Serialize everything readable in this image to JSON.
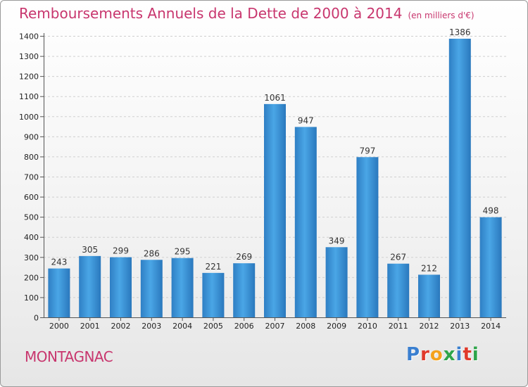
{
  "header": {
    "title": "Remboursements Annuels de la Dette de 2000 à 2014",
    "subtitle": "(en milliers d'€)"
  },
  "footer": {
    "town": "MONTAGNAC",
    "logo": [
      "P",
      "r",
      "o",
      "x",
      "i",
      "t",
      "i"
    ],
    "logo_colors": [
      "#3a7fd0",
      "#e0392b",
      "#f4a21c",
      "#2ea54a",
      "#3a7fd0",
      "#e0392b",
      "#2ea54a"
    ]
  },
  "chart_data": {
    "type": "bar",
    "categories": [
      "2000",
      "2001",
      "2002",
      "2003",
      "2004",
      "2005",
      "2006",
      "2007",
      "2008",
      "2009",
      "2010",
      "2011",
      "2012",
      "2013",
      "2014"
    ],
    "values": [
      243,
      305,
      299,
      286,
      295,
      221,
      269,
      1061,
      947,
      349,
      797,
      267,
      212,
      1386,
      498
    ],
    "ylim": [
      0,
      1400
    ],
    "yticks": [
      0,
      100,
      200,
      300,
      400,
      500,
      600,
      700,
      800,
      900,
      1000,
      1100,
      1200,
      1300,
      1400
    ],
    "grid": true,
    "bar_color": "#3f9be0"
  }
}
